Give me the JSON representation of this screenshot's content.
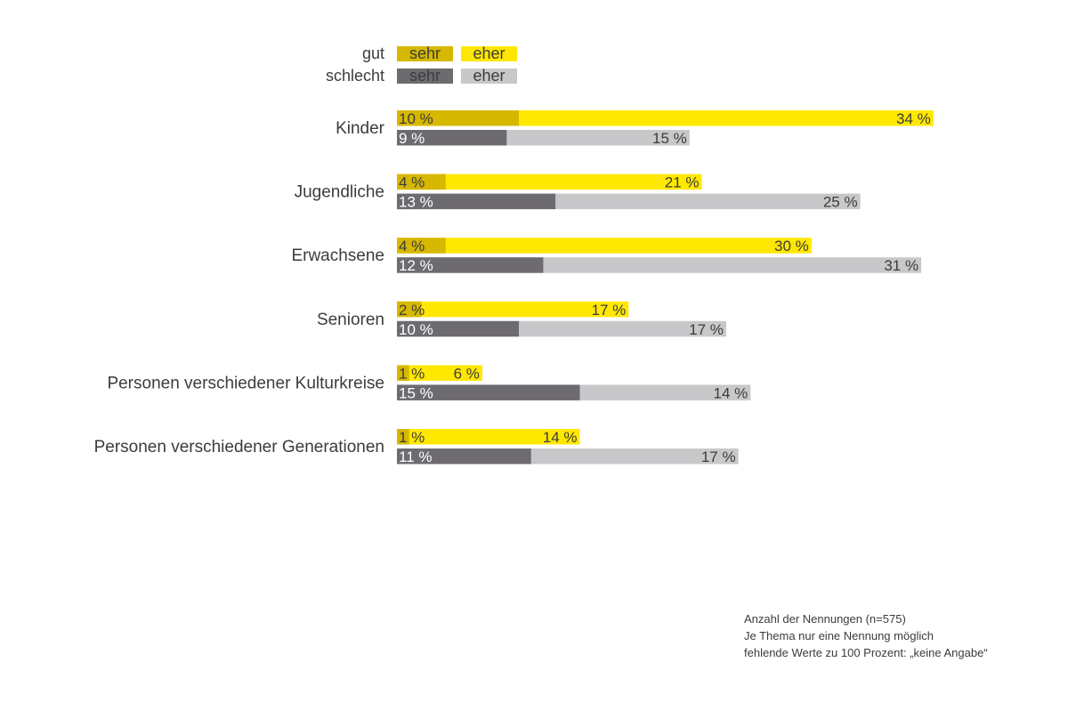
{
  "chart_data": {
    "type": "bar",
    "orientation": "horizontal",
    "stacked": true,
    "unit": "%",
    "legend": {
      "rows": [
        {
          "label": "gut",
          "items": [
            {
              "label": "sehr",
              "color": "#d7b800"
            },
            {
              "label": "eher",
              "color": "#ffe800"
            }
          ]
        },
        {
          "label": "schlecht",
          "items": [
            {
              "label": "sehr",
              "color": "#6d6b70"
            },
            {
              "label": "eher",
              "color": "#c8c7c9"
            }
          ]
        }
      ]
    },
    "categories": [
      "Kinder",
      "Jugendliche",
      "Erwachsene",
      "Senioren",
      "Personen verschiedener Kulturkreise",
      "Personen verschiedener Generationen"
    ],
    "series": [
      {
        "name": "gut sehr",
        "group": "gut",
        "color": "#d7b800",
        "text_color": "#3c3c3c",
        "values": [
          10,
          4,
          4,
          2,
          1,
          1
        ]
      },
      {
        "name": "gut eher",
        "group": "gut",
        "color": "#ffe800",
        "text_color": "#3c3c3c",
        "values": [
          34,
          21,
          30,
          17,
          6,
          14
        ]
      },
      {
        "name": "schlecht sehr",
        "group": "schlecht",
        "color": "#6d6b70",
        "text_color": "#ffffff",
        "values": [
          9,
          13,
          12,
          10,
          15,
          11
        ]
      },
      {
        "name": "schlecht eher",
        "group": "schlecht",
        "color": "#c8c7c9",
        "text_color": "#3c3c3c",
        "values": [
          15,
          25,
          31,
          17,
          14,
          17
        ]
      }
    ]
  },
  "notes": [
    "Anzahl der Nennungen (n=575)",
    "Je Thema nur eine Nennung möglich",
    "fehlende Werte zu 100 Prozent: „keine Angabe“"
  ]
}
